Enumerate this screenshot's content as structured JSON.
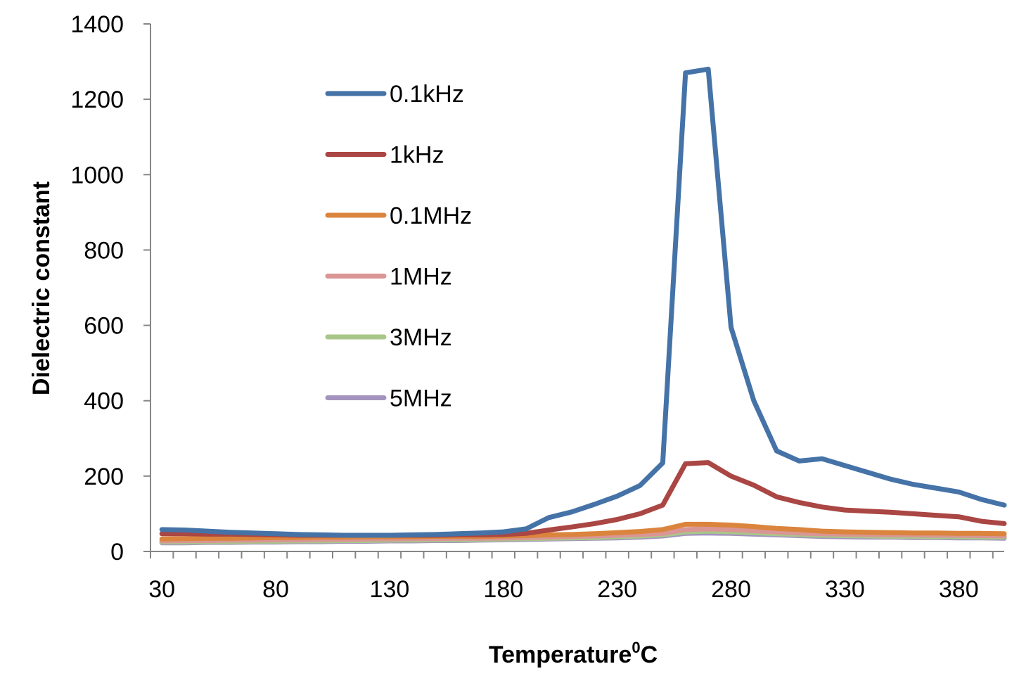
{
  "chart_data": {
    "type": "line",
    "title": "",
    "xlabel": "Temperature",
    "xlabel_sup": "0",
    "xlabel_suffix": "C",
    "ylabel": "Dielectric constant",
    "xlim": [
      25,
      400
    ],
    "ylim": [
      0,
      1400
    ],
    "x_ticks": [
      30,
      80,
      130,
      180,
      230,
      280,
      330,
      380
    ],
    "y_ticks": [
      0,
      200,
      400,
      600,
      800,
      1000,
      1200,
      1400
    ],
    "grid": false,
    "legend_position": "upper-left-inside",
    "x": [
      30,
      40,
      50,
      60,
      70,
      80,
      90,
      100,
      110,
      120,
      130,
      140,
      150,
      160,
      170,
      180,
      190,
      200,
      210,
      220,
      230,
      240,
      250,
      260,
      270,
      280,
      290,
      300,
      310,
      320,
      330,
      340,
      350,
      360,
      370,
      380,
      390,
      400
    ],
    "series": [
      {
        "name": "0.1kHz",
        "color": "#4573A7",
        "values": [
          58,
          57,
          54,
          51,
          49,
          47,
          45,
          44,
          43,
          43,
          43,
          44,
          45,
          47,
          49,
          52,
          60,
          90,
          105,
          125,
          147,
          175,
          235,
          1270,
          1280,
          595,
          400,
          267,
          240,
          246,
          228,
          210,
          192,
          178,
          168,
          158,
          138,
          123
        ]
      },
      {
        "name": "1kHz",
        "color": "#AA4643",
        "values": [
          47,
          47,
          46,
          46,
          45,
          44,
          43,
          43,
          43,
          43,
          43,
          43,
          43,
          44,
          44,
          45,
          48,
          57,
          65,
          74,
          85,
          100,
          123,
          233,
          236,
          200,
          176,
          145,
          130,
          118,
          110,
          107,
          104,
          100,
          96,
          92,
          80,
          74
        ]
      },
      {
        "name": "0.1MHz",
        "color": "#DB843D",
        "values": [
          33,
          34,
          35,
          35,
          36,
          37,
          37,
          38,
          38,
          39,
          39,
          39,
          40,
          40,
          40,
          41,
          42,
          44,
          45,
          47,
          50,
          53,
          58,
          72,
          72,
          70,
          66,
          61,
          58,
          54,
          52,
          51,
          50,
          49,
          49,
          48,
          48,
          47
        ]
      },
      {
        "name": "1MHz",
        "color": "#D99694",
        "values": [
          28,
          29,
          29,
          30,
          30,
          31,
          31,
          32,
          32,
          33,
          33,
          34,
          34,
          35,
          35,
          36,
          37,
          38,
          40,
          41,
          43,
          45,
          48,
          58,
          60,
          58,
          55,
          52,
          49,
          47,
          46,
          45,
          44,
          44,
          43,
          43,
          42,
          41
        ]
      },
      {
        "name": "3MHz",
        "color": "#A9C68A",
        "values": [
          25,
          25,
          26,
          26,
          27,
          27,
          28,
          28,
          29,
          29,
          30,
          30,
          31,
          31,
          32,
          33,
          34,
          35,
          36,
          37,
          39,
          41,
          44,
          52,
          54,
          52,
          50,
          47,
          45,
          43,
          42,
          41,
          40,
          40,
          39,
          39,
          38,
          38
        ]
      },
      {
        "name": "5MHz",
        "color": "#A393BE",
        "values": [
          23,
          23,
          24,
          24,
          25,
          25,
          26,
          26,
          27,
          27,
          28,
          28,
          29,
          29,
          30,
          31,
          32,
          33,
          34,
          35,
          36,
          38,
          41,
          48,
          49,
          48,
          46,
          44,
          42,
          40,
          39,
          38,
          38,
          37,
          37,
          36,
          36,
          35
        ]
      }
    ]
  }
}
